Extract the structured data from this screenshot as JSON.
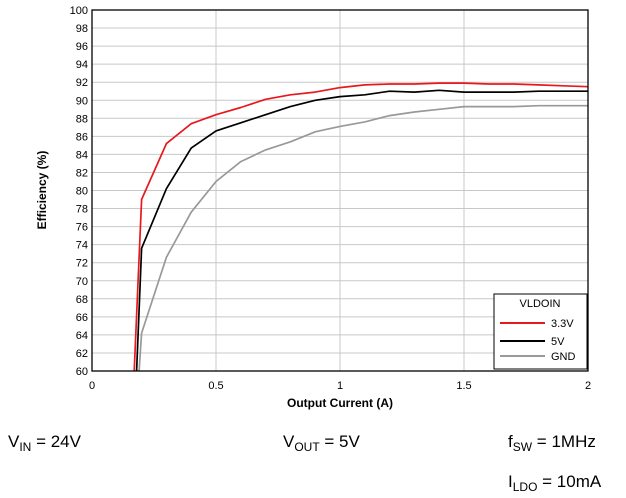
{
  "chart_data": {
    "type": "line",
    "title": "",
    "xlabel": "Output Current (A)",
    "ylabel": "Efficiency (%)",
    "xlim": [
      0,
      2
    ],
    "ylim": [
      60,
      100
    ],
    "x_ticks": [
      "0",
      "0.5",
      "1",
      "1.5",
      "2"
    ],
    "x_tick_values": [
      0,
      0.5,
      1,
      1.5,
      2
    ],
    "y_ticks": [
      "60",
      "62",
      "64",
      "66",
      "68",
      "70",
      "72",
      "74",
      "76",
      "78",
      "80",
      "82",
      "84",
      "86",
      "88",
      "90",
      "92",
      "94",
      "96",
      "98",
      "100"
    ],
    "y_tick_values": [
      60,
      62,
      64,
      66,
      68,
      70,
      72,
      74,
      76,
      78,
      80,
      82,
      84,
      86,
      88,
      90,
      92,
      94,
      96,
      98,
      100
    ],
    "grid": true,
    "legend": {
      "title": "VLDOIN",
      "position": "bottom-right"
    },
    "series": [
      {
        "name": "3.3V",
        "color": "#e8191e",
        "x": [
          0.17,
          0.2,
          0.3,
          0.4,
          0.5,
          0.6,
          0.7,
          0.8,
          0.9,
          1.0,
          1.1,
          1.2,
          1.3,
          1.4,
          1.5,
          1.6,
          1.7,
          1.8,
          1.9,
          2.0
        ],
        "y": [
          60,
          79.0,
          85.2,
          87.4,
          88.4,
          89.2,
          90.1,
          90.6,
          90.9,
          91.4,
          91.7,
          91.8,
          91.8,
          91.9,
          91.9,
          91.8,
          91.8,
          91.7,
          91.6,
          91.5
        ]
      },
      {
        "name": "5V",
        "color": "#000000",
        "x": [
          0.18,
          0.2,
          0.3,
          0.4,
          0.5,
          0.6,
          0.7,
          0.8,
          0.9,
          1.0,
          1.1,
          1.2,
          1.3,
          1.4,
          1.5,
          1.6,
          1.7,
          1.8,
          1.9,
          2.0
        ],
        "y": [
          60,
          73.6,
          80.2,
          84.7,
          86.6,
          87.5,
          88.4,
          89.3,
          90.0,
          90.4,
          90.6,
          91.0,
          90.9,
          91.1,
          90.9,
          90.9,
          90.9,
          91.0,
          91.0,
          91.0
        ]
      },
      {
        "name": "GND",
        "color": "#999999",
        "x": [
          0.19,
          0.2,
          0.3,
          0.4,
          0.5,
          0.6,
          0.7,
          0.8,
          0.9,
          1.0,
          1.1,
          1.2,
          1.3,
          1.4,
          1.5,
          1.6,
          1.7,
          1.8,
          1.9,
          2.0
        ],
        "y": [
          60,
          64.2,
          72.6,
          77.6,
          81.0,
          83.2,
          84.5,
          85.4,
          86.5,
          87.1,
          87.6,
          88.3,
          88.7,
          89.0,
          89.3,
          89.3,
          89.3,
          89.4,
          89.4,
          89.4
        ]
      }
    ]
  },
  "conditions": {
    "vin": {
      "sym": "V",
      "sub": "IN",
      "val": " = 24V"
    },
    "vout": {
      "sym": "V",
      "sub": "OUT",
      "val": " = 5V"
    },
    "fsw": {
      "sym": "f",
      "sub": "SW",
      "val": " = 1MHz"
    },
    "ildo": {
      "sym": "I",
      "sub": "LDO",
      "val": " = 10mA"
    }
  }
}
